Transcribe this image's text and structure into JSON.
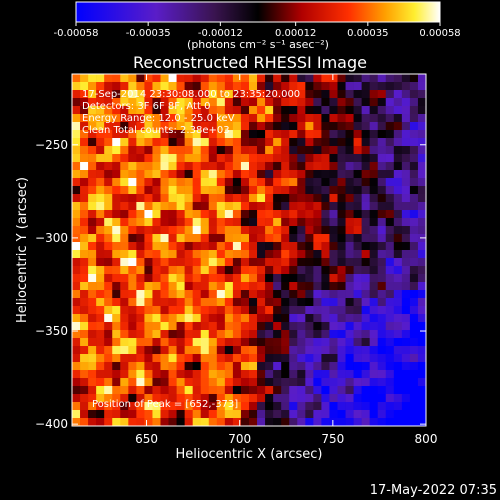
{
  "colorbar": {
    "tick_labels": [
      "-0.00058",
      "-0.00035",
      "-0.00012",
      "0.00012",
      "0.00035",
      "0.00058"
    ],
    "unit_label": "(photons cm⁻² s⁻¹ asec⁻²)",
    "range": [
      -0.00058,
      0.00058
    ]
  },
  "title": "Reconstructed RHESSI Image",
  "info_lines": [
    "17-Sep-2014 23:30:08.000 to 23:35:20.000",
    "Detectors: 3F 6F 8F, Att 0",
    "Energy Range: 12.0 - 25.0 keV",
    "Clean    Total counts: 2.38e+03"
  ],
  "peak_label": "Position of Peak = [652,-373]",
  "footer_date": "17-May-2022 07:35",
  "chart_data": {
    "type": "heatmap",
    "title": "Reconstructed RHESSI Image",
    "xlabel": "Heliocentric X (arcsec)",
    "ylabel": "Heliocentric Y (arcsec)",
    "x_ticks": [
      650,
      700,
      750,
      800
    ],
    "y_ticks": [
      -250,
      -300,
      -350,
      -400
    ],
    "xlim": [
      610,
      800
    ],
    "ylim": [
      -401,
      -212
    ],
    "colormap": "RHESSI std_gamma (blue-purple-black-red-orange-yellow-white)",
    "value_range": [
      -0.00058,
      0.00058
    ],
    "peak_position": [
      652,
      -373
    ]
  }
}
